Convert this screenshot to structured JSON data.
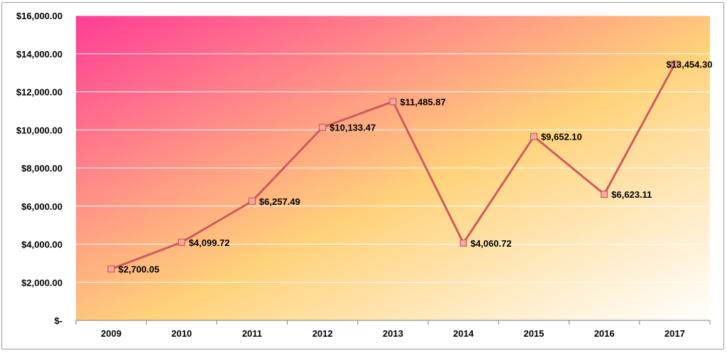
{
  "chart_data": {
    "type": "line",
    "categories": [
      "2009",
      "2010",
      "2011",
      "2012",
      "2013",
      "2014",
      "2015",
      "2016",
      "2017"
    ],
    "series": [
      {
        "values": [
          2700.05,
          4099.72,
          6257.49,
          10133.47,
          11485.87,
          4060.72,
          9652.1,
          6623.11,
          13454.3
        ],
        "labels": [
          "$2,700.05",
          "$4,099.72",
          "$6,257.49",
          "$10,133.47",
          "$11,485.87",
          "$4,060.72",
          "$9,652.10",
          "$6,623.11",
          "$13,454.30"
        ]
      }
    ],
    "yticks": [
      0,
      2000,
      4000,
      6000,
      8000,
      10000,
      12000,
      14000,
      16000
    ],
    "ytick_labels": [
      "$-",
      "$2,000.00",
      "$4,000.00",
      "$6,000.00",
      "$8,000.00",
      "$10,000.00",
      "$12,000.00",
      "$14,000.00",
      "$16,000.00"
    ],
    "ylim": [
      0,
      16000
    ],
    "grid": true,
    "legend": "none",
    "colors": {
      "line": "#cd5c5c",
      "marker_fill": "#f4a8a0",
      "marker_stroke": "#c0504d",
      "gradient_start": "#ff3d96",
      "gradient_mid": "#ffd27a",
      "gradient_end": "#ffffff"
    }
  }
}
